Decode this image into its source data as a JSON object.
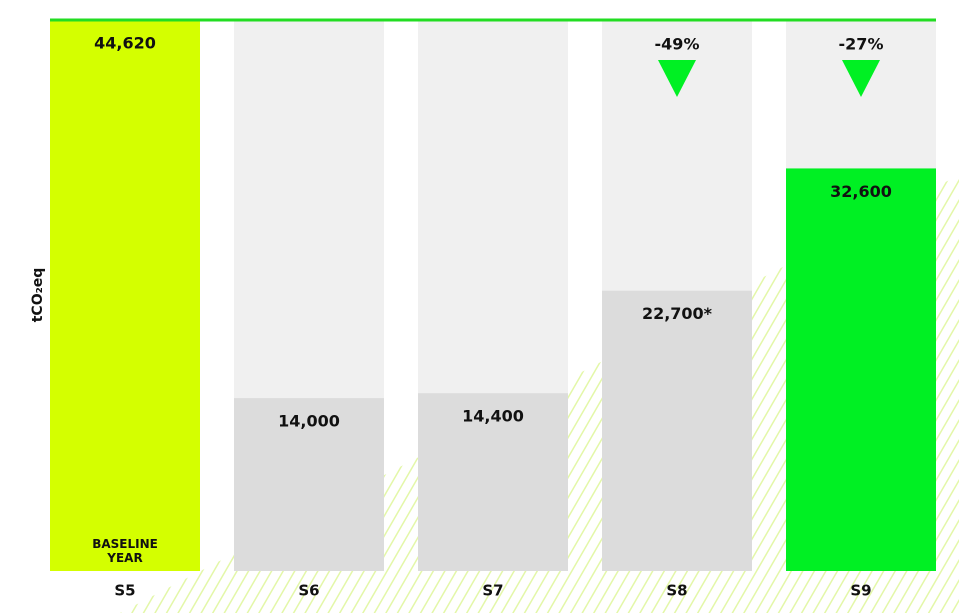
{
  "chart_data": {
    "type": "bar",
    "y_label": "tCO₂eq",
    "categories": [
      "S5",
      "S6",
      "S7",
      "S8",
      "S9"
    ],
    "values": [
      44620,
      14000,
      14400,
      22700,
      32600
    ],
    "value_labels": [
      "44,620",
      "14,000",
      "14,400",
      "22,700*",
      "32,600"
    ],
    "colors": [
      "#d4ff00",
      "#dcdcdc",
      "#dcdcdc",
      "#dcdcdc",
      "#00f023"
    ],
    "ylim": [
      0,
      44620
    ],
    "annotations": [
      {
        "category": "S5",
        "text": "BASELINE YEAR"
      },
      {
        "category": "S8",
        "text": "-49%"
      },
      {
        "category": "S9",
        "text": "-27%"
      }
    ]
  }
}
